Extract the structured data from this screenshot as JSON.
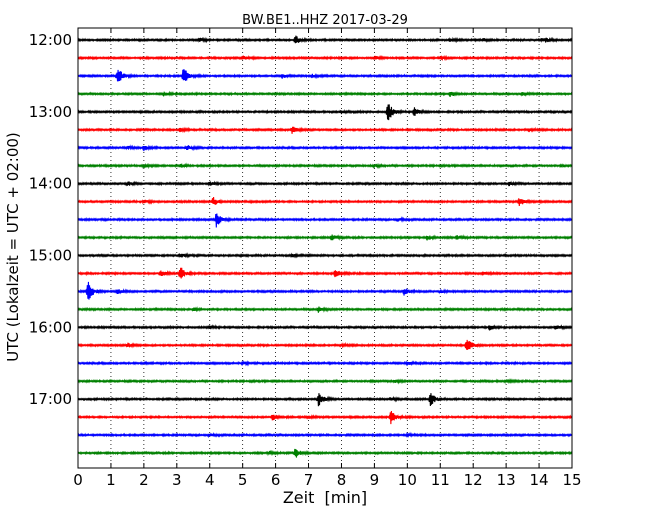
{
  "chart_data": {
    "type": "line",
    "title": "BW.BE1..HHZ 2017-03-29",
    "xlabel": "Zeit  [min]",
    "ylabel": "UTC (Lokalzeit = UTC + 02:00)",
    "xlim": [
      0,
      15
    ],
    "x_ticks": [
      "0",
      "1",
      "2",
      "3",
      "4",
      "5",
      "6",
      "7",
      "8",
      "9",
      "10",
      "11",
      "12",
      "13",
      "14",
      "15"
    ],
    "y_tick_labels": [
      "12:00",
      "13:00",
      "14:00",
      "15:00",
      "16:00",
      "17:00"
    ],
    "grid": true,
    "series_colors": [
      "#000000",
      "#ff0000",
      "#0000ff",
      "#008000"
    ],
    "traces": [
      {
        "start": "12:00",
        "events": [
          [
            3.7,
            0.35
          ],
          [
            6.6,
            0.9
          ],
          [
            11.3,
            0.3
          ],
          [
            12.3,
            0.3
          ],
          [
            14.1,
            0.3
          ],
          [
            14.2,
            0.3
          ]
        ]
      },
      {
        "start": "12:15",
        "events": [
          [
            5.0,
            0.35
          ],
          [
            9.0,
            0.3
          ],
          [
            11.0,
            0.25
          ]
        ]
      },
      {
        "start": "12:30",
        "events": [
          [
            1.2,
            1.8
          ],
          [
            3.2,
            1.6
          ],
          [
            6.2,
            0.4
          ],
          [
            7.1,
            0.3
          ]
        ]
      },
      {
        "start": "12:45",
        "events": [
          [
            2.6,
            0.3
          ],
          [
            11.3,
            0.5
          ],
          [
            13.5,
            0.3
          ]
        ]
      },
      {
        "start": "13:00",
        "events": [
          [
            9.4,
            2.0
          ],
          [
            10.2,
            0.8
          ],
          [
            8.0,
            0.25
          ]
        ]
      },
      {
        "start": "13:15",
        "events": [
          [
            6.5,
            0.7
          ],
          [
            3.1,
            0.3
          ],
          [
            13.7,
            0.3
          ]
        ]
      },
      {
        "start": "13:30",
        "events": [
          [
            2.0,
            0.5
          ],
          [
            3.3,
            0.45
          ],
          [
            1.5,
            0.25
          ]
        ]
      },
      {
        "start": "13:45",
        "events": [
          [
            2.0,
            0.3
          ],
          [
            3.1,
            0.3
          ],
          [
            9.0,
            0.25
          ]
        ]
      },
      {
        "start": "14:00",
        "events": [
          [
            1.5,
            0.4
          ],
          [
            4.0,
            0.3
          ],
          [
            13.1,
            0.35
          ]
        ]
      },
      {
        "start": "14:15",
        "events": [
          [
            4.1,
            0.8
          ],
          [
            2.0,
            0.35
          ],
          [
            13.4,
            0.8
          ]
        ]
      },
      {
        "start": "14:30",
        "events": [
          [
            4.2,
            1.3
          ],
          [
            9.7,
            0.25
          ]
        ]
      },
      {
        "start": "14:45",
        "events": [
          [
            7.7,
            0.5
          ],
          [
            10.6,
            0.5
          ],
          [
            11.5,
            0.35
          ]
        ]
      },
      {
        "start": "15:00",
        "events": [
          [
            3.1,
            0.35
          ],
          [
            6.5,
            0.3
          ]
        ]
      },
      {
        "start": "15:15",
        "events": [
          [
            2.5,
            0.6
          ],
          [
            3.1,
            1.3
          ],
          [
            7.8,
            0.6
          ],
          [
            12.3,
            0.25
          ]
        ]
      },
      {
        "start": "15:30",
        "events": [
          [
            0.3,
            1.9
          ],
          [
            1.2,
            0.4
          ],
          [
            9.9,
            0.8
          ],
          [
            11.0,
            0.3
          ]
        ]
      },
      {
        "start": "15:45",
        "events": [
          [
            7.3,
            0.5
          ],
          [
            3.5,
            0.25
          ]
        ]
      },
      {
        "start": "16:00",
        "events": [
          [
            12.5,
            0.45
          ],
          [
            14.5,
            0.4
          ],
          [
            4.0,
            0.3
          ]
        ]
      },
      {
        "start": "16:15",
        "events": [
          [
            1.5,
            0.4
          ],
          [
            11.8,
            1.5
          ],
          [
            8.0,
            0.25
          ]
        ]
      },
      {
        "start": "16:30",
        "events": [
          [
            5.0,
            0.25
          ],
          [
            10.0,
            0.25
          ]
        ]
      },
      {
        "start": "16:45",
        "events": [
          [
            13.0,
            0.3
          ],
          [
            9.6,
            0.25
          ]
        ]
      },
      {
        "start": "17:00",
        "events": [
          [
            7.3,
            1.5
          ],
          [
            10.7,
            1.3
          ],
          [
            9.5,
            0.3
          ]
        ]
      },
      {
        "start": "17:15",
        "events": [
          [
            5.9,
            0.7
          ],
          [
            9.5,
            1.1
          ],
          [
            7.0,
            0.25
          ]
        ]
      },
      {
        "start": "17:30",
        "events": [
          [
            4.0,
            0.2
          ],
          [
            10.0,
            0.2
          ]
        ]
      },
      {
        "start": "17:45",
        "events": [
          [
            6.6,
            0.9
          ],
          [
            5.8,
            0.3
          ]
        ]
      }
    ]
  }
}
